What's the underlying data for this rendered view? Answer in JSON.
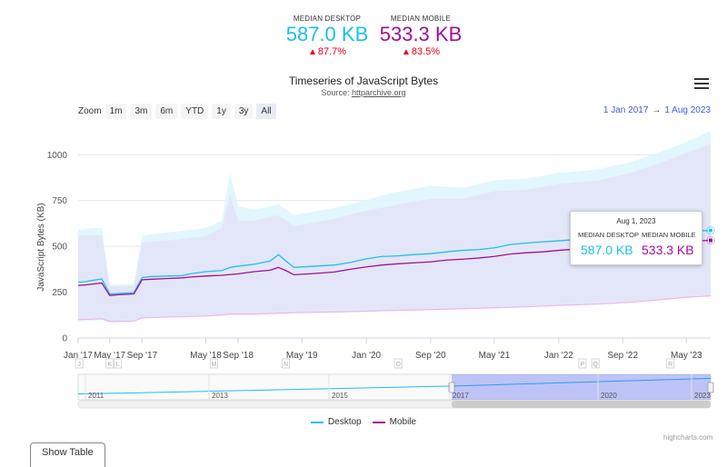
{
  "kpis": {
    "desktop": {
      "label": "MEDIAN DESKTOP",
      "value": "587.0 KB",
      "change": "87.7%",
      "color": "#1bc0ee"
    },
    "mobile": {
      "label": "MEDIAN MOBILE",
      "value": "533.3 KB",
      "change": "83.5%",
      "color": "#a10e9a"
    }
  },
  "zoom": {
    "label": "Zoom",
    "buttons": [
      "1m",
      "3m",
      "6m",
      "YTD",
      "1y",
      "3y",
      "All"
    ]
  },
  "range": {
    "from": "1 Jan 2017",
    "arrow": "→",
    "to": "1 Aug 2023"
  },
  "tooltip": {
    "date": "Aug 1, 2023",
    "desktop_label": "MEDIAN DESKTOP",
    "desktop_value": "587.0 KB",
    "mobile_label": "MEDIAN MOBILE",
    "mobile_value": "533.3 KB"
  },
  "navigator": {
    "labels": [
      "2011",
      "2013",
      "2015",
      "2017",
      "2020",
      "2023"
    ]
  },
  "credits": "highcharts.com",
  "show_table": "Show Table",
  "chart_data": {
    "type": "line",
    "title": "Timeseries of JavaScript Bytes",
    "subtitle_prefix": "Source: ",
    "subtitle_link": "httparchive.org",
    "ylabel": "JavaScript Bytes (KB)",
    "ylim": [
      0,
      1150
    ],
    "yticks": [
      0,
      250,
      500,
      750,
      1000
    ],
    "xlim": [
      "2017-01-01",
      "2023-08-01"
    ],
    "xticks": [
      {
        "label": "Jan '17",
        "date": "2017-01-01"
      },
      {
        "label": "May '17",
        "date": "2017-05-01"
      },
      {
        "label": "Sep '17",
        "date": "2017-09-01"
      },
      {
        "label": "May '18",
        "date": "2018-05-01"
      },
      {
        "label": "Sep '18",
        "date": "2018-09-01"
      },
      {
        "label": "May '19",
        "date": "2019-05-01"
      },
      {
        "label": "Jan '20",
        "date": "2020-01-01"
      },
      {
        "label": "Sep '20",
        "date": "2020-09-01"
      },
      {
        "label": "May '21",
        "date": "2021-05-01"
      },
      {
        "label": "Jan '22",
        "date": "2022-01-01"
      },
      {
        "label": "Sep '22",
        "date": "2022-09-01"
      },
      {
        "label": "May '23",
        "date": "2023-05-01"
      }
    ],
    "flags": [
      {
        "label": "J",
        "date": "2017-01-05"
      },
      {
        "label": "K",
        "date": "2017-05-01"
      },
      {
        "label": "L",
        "date": "2017-06-01"
      },
      {
        "label": "M",
        "date": "2018-06-01"
      },
      {
        "label": "N",
        "date": "2019-03-01"
      },
      {
        "label": "O",
        "date": "2020-05-01"
      },
      {
        "label": "P",
        "date": "2022-04-01"
      },
      {
        "label": "Q",
        "date": "2022-05-20"
      },
      {
        "label": "R",
        "date": "2023-03-01"
      }
    ],
    "legend": [
      "Desktop",
      "Mobile"
    ],
    "series": [
      {
        "name": "Desktop",
        "color": "#1bc0ee",
        "points": [
          [
            "2017-01-01",
            305
          ],
          [
            "2017-02-01",
            308
          ],
          [
            "2017-03-01",
            315
          ],
          [
            "2017-04-01",
            322
          ],
          [
            "2017-05-01",
            240
          ],
          [
            "2017-06-01",
            243
          ],
          [
            "2017-07-01",
            245
          ],
          [
            "2017-08-01",
            248
          ],
          [
            "2017-09-01",
            330
          ],
          [
            "2017-10-01",
            335
          ],
          [
            "2017-12-01",
            338
          ],
          [
            "2018-02-01",
            340
          ],
          [
            "2018-03-01",
            350
          ],
          [
            "2018-05-01",
            362
          ],
          [
            "2018-07-01",
            368
          ],
          [
            "2018-08-01",
            385
          ],
          [
            "2018-09-01",
            392
          ],
          [
            "2018-11-01",
            402
          ],
          [
            "2019-01-01",
            420
          ],
          [
            "2019-02-01",
            455
          ],
          [
            "2019-03-01",
            420
          ],
          [
            "2019-04-01",
            385
          ],
          [
            "2019-06-01",
            390
          ],
          [
            "2019-09-01",
            398
          ],
          [
            "2019-11-01",
            412
          ],
          [
            "2020-01-01",
            432
          ],
          [
            "2020-03-01",
            445
          ],
          [
            "2020-05-01",
            448
          ],
          [
            "2020-07-01",
            455
          ],
          [
            "2020-09-01",
            460
          ],
          [
            "2020-11-01",
            470
          ],
          [
            "2021-01-01",
            478
          ],
          [
            "2021-03-01",
            482
          ],
          [
            "2021-05-01",
            492
          ],
          [
            "2021-07-01",
            510
          ],
          [
            "2021-09-01",
            518
          ],
          [
            "2021-11-01",
            525
          ],
          [
            "2022-01-01",
            530
          ],
          [
            "2022-04-01",
            540
          ],
          [
            "2022-07-01",
            550
          ],
          [
            "2022-10-01",
            560
          ],
          [
            "2023-01-01",
            570
          ],
          [
            "2023-04-01",
            580
          ],
          [
            "2023-08-01",
            587
          ]
        ]
      },
      {
        "name": "Mobile",
        "color": "#a10e9a",
        "points": [
          [
            "2017-01-01",
            287
          ],
          [
            "2017-02-01",
            290
          ],
          [
            "2017-03-01",
            295
          ],
          [
            "2017-04-01",
            300
          ],
          [
            "2017-05-01",
            232
          ],
          [
            "2017-06-01",
            236
          ],
          [
            "2017-07-01",
            238
          ],
          [
            "2017-08-01",
            241
          ],
          [
            "2017-09-01",
            318
          ],
          [
            "2017-10-01",
            320
          ],
          [
            "2017-12-01",
            324
          ],
          [
            "2018-02-01",
            328
          ],
          [
            "2018-03-01",
            332
          ],
          [
            "2018-05-01",
            338
          ],
          [
            "2018-07-01",
            342
          ],
          [
            "2018-09-01",
            350
          ],
          [
            "2018-11-01",
            362
          ],
          [
            "2019-01-01",
            370
          ],
          [
            "2019-02-01",
            385
          ],
          [
            "2019-03-01",
            368
          ],
          [
            "2019-04-01",
            345
          ],
          [
            "2019-06-01",
            350
          ],
          [
            "2019-09-01",
            360
          ],
          [
            "2019-11-01",
            375
          ],
          [
            "2020-01-01",
            388
          ],
          [
            "2020-03-01",
            398
          ],
          [
            "2020-05-01",
            405
          ],
          [
            "2020-07-01",
            410
          ],
          [
            "2020-09-01",
            415
          ],
          [
            "2020-11-01",
            425
          ],
          [
            "2021-01-01",
            430
          ],
          [
            "2021-03-01",
            436
          ],
          [
            "2021-05-01",
            445
          ],
          [
            "2021-07-01",
            458
          ],
          [
            "2021-09-01",
            465
          ],
          [
            "2021-11-01",
            470
          ],
          [
            "2022-01-01",
            478
          ],
          [
            "2022-04-01",
            488
          ],
          [
            "2022-07-01",
            497
          ],
          [
            "2022-10-01",
            507
          ],
          [
            "2023-01-01",
            515
          ],
          [
            "2023-04-01",
            525
          ],
          [
            "2023-08-01",
            533
          ]
        ]
      }
    ],
    "bands": [
      {
        "name": "Desktop range",
        "color": "#dff5fd",
        "points": [
          [
            "2017-01-01",
            90,
            590
          ],
          [
            "2017-03-01",
            95,
            600
          ],
          [
            "2017-04-01",
            98,
            600
          ],
          [
            "2017-05-01",
            85,
            290
          ],
          [
            "2017-08-01",
            88,
            295
          ],
          [
            "2017-09-01",
            110,
            560
          ],
          [
            "2018-01-01",
            118,
            580
          ],
          [
            "2018-05-01",
            125,
            600
          ],
          [
            "2018-07-01",
            130,
            640
          ],
          [
            "2018-08-01",
            140,
            900
          ],
          [
            "2018-09-01",
            140,
            720
          ],
          [
            "2018-11-01",
            140,
            700
          ],
          [
            "2019-02-01",
            145,
            730
          ],
          [
            "2019-04-01",
            148,
            670
          ],
          [
            "2019-09-01",
            152,
            710
          ],
          [
            "2019-12-01",
            155,
            740
          ],
          [
            "2020-04-01",
            160,
            790
          ],
          [
            "2020-09-01",
            165,
            830
          ],
          [
            "2021-01-01",
            170,
            820
          ],
          [
            "2021-05-01",
            175,
            860
          ],
          [
            "2021-09-01",
            180,
            870
          ],
          [
            "2022-01-01",
            188,
            900
          ],
          [
            "2022-06-01",
            195,
            920
          ],
          [
            "2022-10-01",
            205,
            960
          ],
          [
            "2023-02-01",
            220,
            1020
          ],
          [
            "2023-05-01",
            230,
            1070
          ],
          [
            "2023-08-01",
            238,
            1130
          ]
        ]
      },
      {
        "name": "Mobile range",
        "color": "#e3e3f7",
        "points": [
          [
            "2017-01-01",
            100,
            560
          ],
          [
            "2017-04-01",
            105,
            560
          ],
          [
            "2017-05-01",
            90,
            280
          ],
          [
            "2017-08-01",
            92,
            285
          ],
          [
            "2017-09-01",
            110,
            520
          ],
          [
            "2018-01-01",
            115,
            535
          ],
          [
            "2018-05-01",
            120,
            555
          ],
          [
            "2018-07-01",
            125,
            600
          ],
          [
            "2018-08-01",
            130,
            780
          ],
          [
            "2018-09-01",
            130,
            640
          ],
          [
            "2018-11-01",
            130,
            640
          ],
          [
            "2019-02-01",
            135,
            670
          ],
          [
            "2019-04-01",
            138,
            610
          ],
          [
            "2019-09-01",
            142,
            650
          ],
          [
            "2019-12-01",
            145,
            685
          ],
          [
            "2020-04-01",
            150,
            720
          ],
          [
            "2020-09-01",
            155,
            760
          ],
          [
            "2021-01-01",
            160,
            760
          ],
          [
            "2021-05-01",
            165,
            800
          ],
          [
            "2021-09-01",
            170,
            810
          ],
          [
            "2022-01-01",
            178,
            840
          ],
          [
            "2022-06-01",
            185,
            860
          ],
          [
            "2022-10-01",
            195,
            900
          ],
          [
            "2023-02-01",
            210,
            960
          ],
          [
            "2023-05-01",
            222,
            1010
          ],
          [
            "2023-08-01",
            230,
            1060
          ]
        ]
      }
    ]
  }
}
